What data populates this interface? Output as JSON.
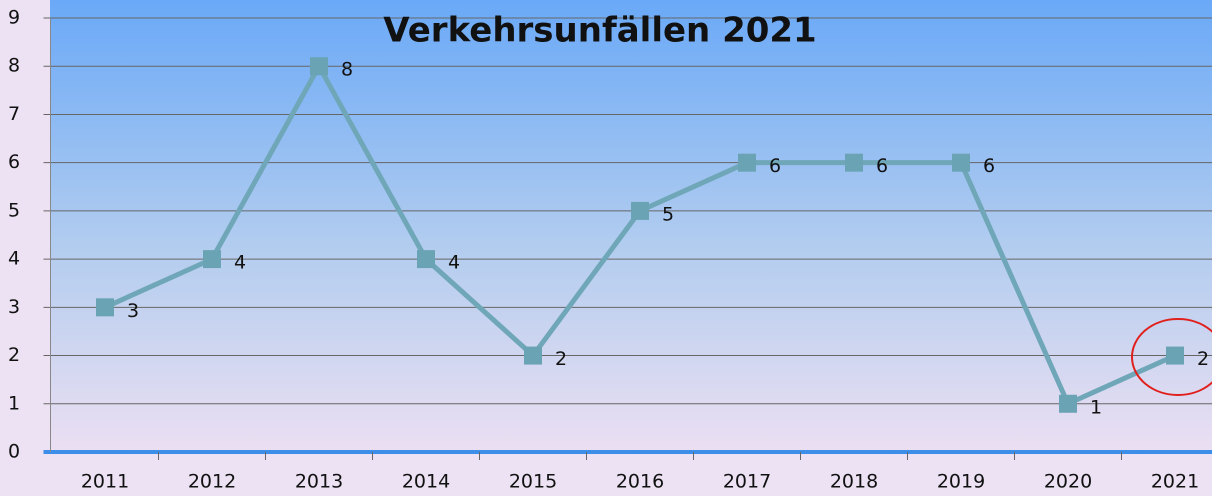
{
  "chart_data": {
    "type": "line",
    "title": "Verkehrsunfällen 2021",
    "categories": [
      "2011",
      "2012",
      "2013",
      "2014",
      "2015",
      "2016",
      "2017",
      "2018",
      "2019",
      "2020",
      "2021"
    ],
    "values": [
      3,
      4,
      8,
      4,
      2,
      5,
      6,
      6,
      6,
      1,
      2
    ],
    "color": "#6fa7b8",
    "ylim": [
      0,
      9
    ],
    "yticks": [
      0,
      1,
      2,
      3,
      4,
      5,
      6,
      7,
      8,
      9
    ],
    "grid": true
  }
}
